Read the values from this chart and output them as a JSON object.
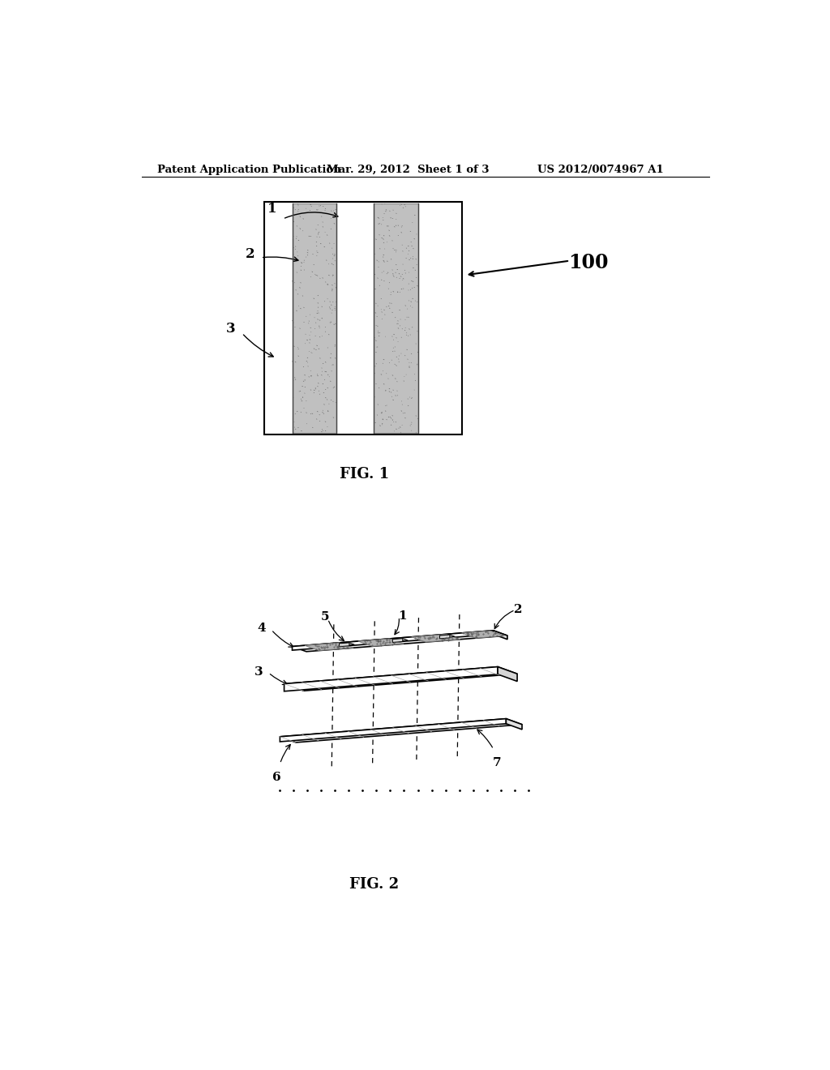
{
  "bg_color": "#ffffff",
  "header_left": "Patent Application Publication",
  "header_center": "Mar. 29, 2012  Sheet 1 of 3",
  "header_right": "US 2012/0074967 A1",
  "fig1_label": "FIG. 1",
  "fig2_label": "FIG. 2"
}
